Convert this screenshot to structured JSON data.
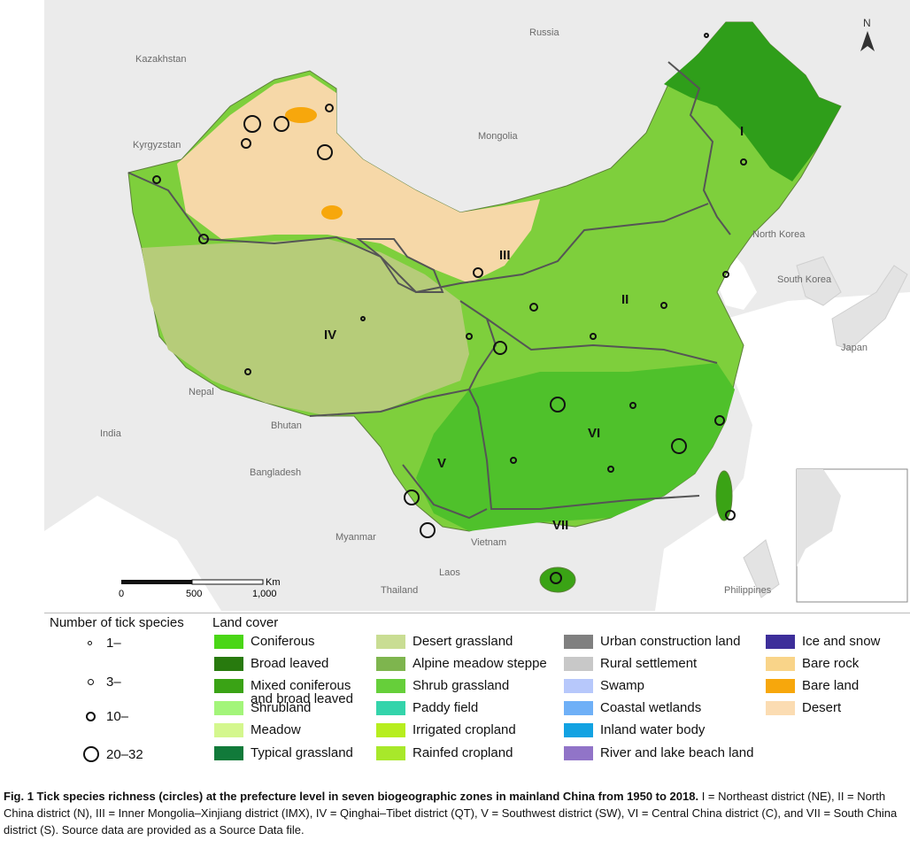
{
  "map": {
    "countries": [
      "Russia",
      "Kazakhstan",
      "Kyrgyzstan",
      "Mongolia",
      "North Korea",
      "South Korea",
      "Japan",
      "Nepal",
      "India",
      "Bhutan",
      "Bangladesh",
      "Myanmar",
      "Vietnam",
      "Laos",
      "Thailand",
      "Philippines"
    ],
    "zones": [
      "I",
      "II",
      "III",
      "IV",
      "V",
      "VI",
      "VII"
    ],
    "north_label": "N",
    "scale": {
      "ticks": [
        "0",
        "500",
        "1,000"
      ],
      "unit": "Km"
    }
  },
  "legend": {
    "species_title": "Number of tick species",
    "species_classes": [
      "1–",
      "3–",
      "10–",
      "20–32"
    ],
    "landcover_title": "Land cover",
    "landcover": [
      {
        "label": "Coniferous",
        "color": "#4ad616"
      },
      {
        "label": "Broad leaved",
        "color": "#287a0e"
      },
      {
        "label": "Mixed coniferous\nand broad leaved",
        "color": "#3aa315"
      },
      {
        "label": "Shrubland",
        "color": "#a3f57a"
      },
      {
        "label": "Meadow",
        "color": "#d4f78e"
      },
      {
        "label": "Typical grassland",
        "color": "#117a3a"
      },
      {
        "label": "Desert grassland",
        "color": "#c9dd93"
      },
      {
        "label": "Alpine meadow steppe",
        "color": "#7eb54e"
      },
      {
        "label": "Shrub grassland",
        "color": "#66cf3a"
      },
      {
        "label": "Paddy field",
        "color": "#34d4ab"
      },
      {
        "label": "Irrigated cropland",
        "color": "#b7ee1e"
      },
      {
        "label": "Rainfed cropland",
        "color": "#a8e82a"
      },
      {
        "label": "Urban construction land",
        "color": "#808080"
      },
      {
        "label": "Rural settlement",
        "color": "#c8c8c8"
      },
      {
        "label": "Swamp",
        "color": "#b7c8fb"
      },
      {
        "label": "Coastal wetlands",
        "color": "#6fb0f7"
      },
      {
        "label": "Inland water body",
        "color": "#12a2e2"
      },
      {
        "label": "River and lake beach land",
        "color": "#9174c8"
      },
      {
        "label": "Ice and snow",
        "color": "#3d2e9a"
      },
      {
        "label": "Bare rock",
        "color": "#f9d489"
      },
      {
        "label": "Bare land",
        "color": "#f7a70c"
      },
      {
        "label": "Desert",
        "color": "#fbdcb2"
      }
    ]
  },
  "caption": {
    "bold": "Fig. 1 Tick species richness (circles) at the prefecture level in seven biogeographic zones in mainland China from 1950 to 2018.",
    "text": " I = Northeast district (NE), II = North China district (N), III = Inner Mongolia–Xinjiang district (IMX), IV = Qinghai–Tibet district (QT), V = Southwest district (SW), VI = Central China district (C), and VII = South China district (S). Source data are provided as a Source Data file."
  },
  "colors": {
    "background_land": "#ebebeb",
    "sea": "#ffffff",
    "zone_line": "#555555"
  }
}
